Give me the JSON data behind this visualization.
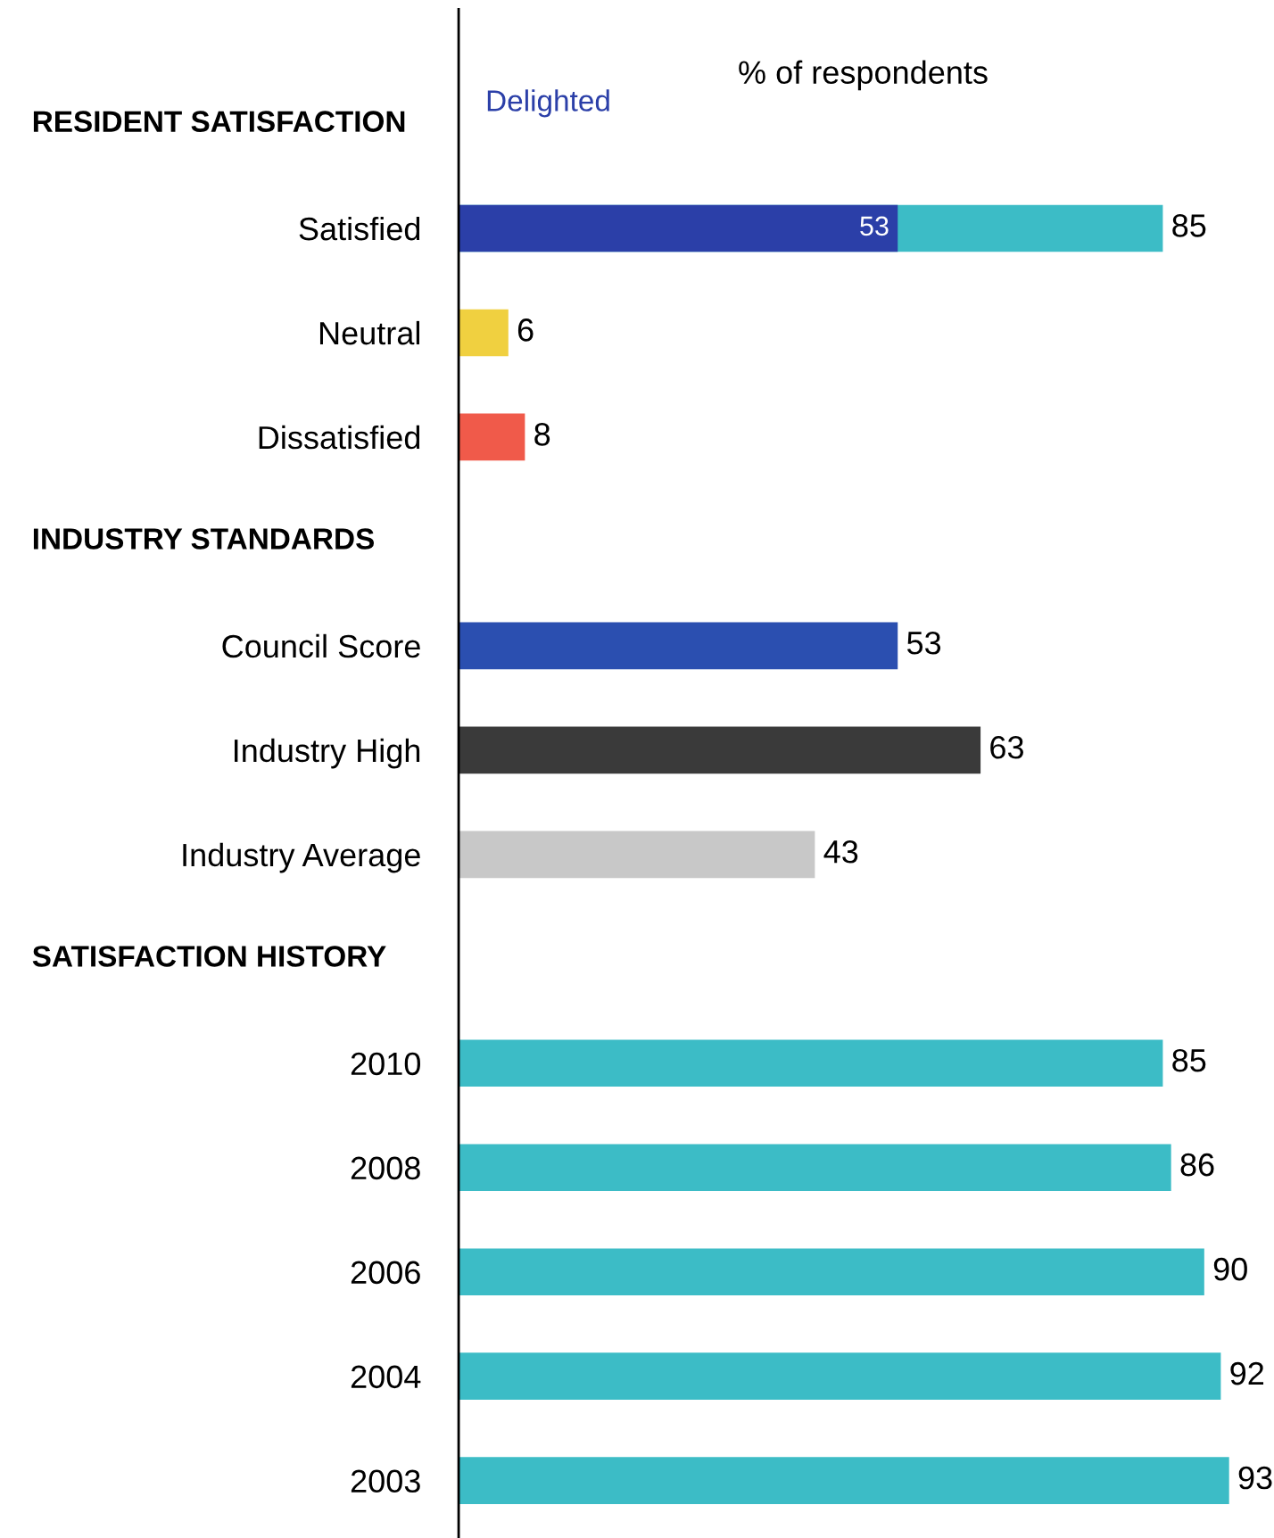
{
  "chart_data": {
    "type": "bar",
    "orientation": "horizontal",
    "xlabel": "% of respondents",
    "categories": [
      null,
      "Satisfied",
      "Neutral",
      "Dissatisfied",
      null,
      "Council Score",
      "Industry High",
      "Industry Average",
      null,
      "2010",
      "2008",
      "2006",
      "2004",
      "2003"
    ],
    "annotations": [
      "RESIDENT SATISFACTION",
      "INDUSTRY STANDARDS",
      "SATISFACTION HISTORY"
    ],
    "series": [
      {
        "colors": [
          "#ffffff",
          "#3cbcc6",
          "#f0d040",
          "#f05a4a",
          "#ffffff",
          "#2b4fb0",
          "#3a3a3a",
          "#c8c8c8",
          "#ffffff",
          "#3cbcc6",
          "#3cbcc6",
          "#3cbcc6",
          "#3cbcc6",
          "#3cbcc6"
        ],
        "values": [
          null,
          85,
          6,
          8,
          null,
          53,
          63,
          43,
          null,
          85,
          86,
          90,
          92,
          93
        ],
        "value_labels": [
          null,
          "85",
          "6",
          "8",
          null,
          "53",
          "63",
          "43",
          null,
          "85",
          "86",
          "90",
          "92",
          "93"
        ]
      },
      {
        "name": "Delighted",
        "color": "#2b3fa8",
        "values": [
          null,
          53,
          null,
          null,
          null,
          null,
          null,
          null,
          null,
          null,
          null,
          null,
          null,
          null
        ],
        "value_labels": [
          null,
          "53",
          null,
          null,
          null,
          null,
          null,
          null,
          null,
          null,
          null,
          null,
          null,
          null
        ]
      }
    ],
    "legend": "top left"
  }
}
